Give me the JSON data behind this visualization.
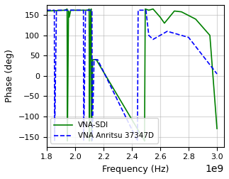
{
  "title": "",
  "xlabel": "Frequency (Hz)",
  "ylabel": "Phase (deg)",
  "xlim": [
    1800000000.0,
    3050000000.0
  ],
  "ylim": [
    -175,
    175
  ],
  "line1_label": "VNA-SDI",
  "line1_color": "green",
  "line1_style": "-",
  "line2_label": "VNA Anritsu 37347D",
  "line2_color": "blue",
  "line2_style": "--",
  "legend_loc": "lower left",
  "grid": true,
  "figsize": [
    3.23,
    2.52
  ],
  "dpi": 100
}
